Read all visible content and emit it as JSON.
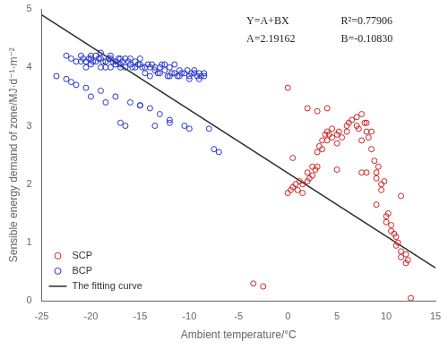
{
  "chart_data": {
    "type": "scatter",
    "xlabel": "Ambient temperature/°C",
    "ylabel": "Sensible energy demand of zone/MJ·d⁻¹·m⁻²",
    "xlim": [
      -25,
      15
    ],
    "ylim": [
      0,
      5
    ],
    "xticks": [
      -25,
      -20,
      -15,
      -10,
      -5,
      0,
      5,
      10,
      15
    ],
    "yticks": [
      0,
      1,
      2,
      3,
      4,
      5
    ],
    "grid": false,
    "legend": "lower left",
    "annotations": [
      "Y=A+BX",
      "A=2.19162",
      "R²=0.77906",
      "B=-0.10830"
    ],
    "series": [
      {
        "name": "SCP",
        "color": "#cc2222",
        "marker": "circle",
        "x": [
          -3.5,
          -2.5,
          0.0,
          0.3,
          0.5,
          0.8,
          1.0,
          1.2,
          1.5,
          1.5,
          2.0,
          2.0,
          2.2,
          2.5,
          2.5,
          2.8,
          3.0,
          3.0,
          3.2,
          3.5,
          3.5,
          3.8,
          4.0,
          4.0,
          4.2,
          4.5,
          4.5,
          5.0,
          5.0,
          5.2,
          5.5,
          6.0,
          6.0,
          6.2,
          6.5,
          7.0,
          7.0,
          7.2,
          7.5,
          7.5,
          7.8,
          8.0,
          8.0,
          8.2,
          8.5,
          8.5,
          8.8,
          9.0,
          9.0,
          9.2,
          9.5,
          9.5,
          9.8,
          10.0,
          10.0,
          10.2,
          10.5,
          10.5,
          10.8,
          11.0,
          11.0,
          11.2,
          11.5,
          11.5,
          12.0,
          12.0,
          12.2,
          0.0,
          0.5,
          2.0,
          3.0,
          4.0,
          5.0,
          7.5,
          8.0,
          9.0,
          11.5,
          12.5
        ],
        "values": [
          0.3,
          0.25,
          1.85,
          1.9,
          1.95,
          2.0,
          1.9,
          2.05,
          2.0,
          1.85,
          2.2,
          2.05,
          2.1,
          2.3,
          2.15,
          2.25,
          2.3,
          2.55,
          2.65,
          2.6,
          2.75,
          2.85,
          2.75,
          2.9,
          2.85,
          2.8,
          2.95,
          2.85,
          2.7,
          2.9,
          2.8,
          3.0,
          2.9,
          3.05,
          3.1,
          3.0,
          3.15,
          2.95,
          2.75,
          3.2,
          3.05,
          2.9,
          3.05,
          2.8,
          2.9,
          2.6,
          2.4,
          2.2,
          2.1,
          2.3,
          2.0,
          1.9,
          2.05,
          1.45,
          1.35,
          1.5,
          1.3,
          1.2,
          1.15,
          1.1,
          0.95,
          1.0,
          0.85,
          0.75,
          0.8,
          0.65,
          0.7,
          3.65,
          2.45,
          3.3,
          3.25,
          3.3,
          2.25,
          2.2,
          2.2,
          1.65,
          1.8,
          0.05
        ]
      },
      {
        "name": "BCP",
        "color": "#2233cc",
        "marker": "circle",
        "x": [
          -22.5,
          -22.0,
          -21.5,
          -21.0,
          -21.0,
          -20.8,
          -20.5,
          -20.5,
          -20.2,
          -20.0,
          -20.0,
          -20.0,
          -19.8,
          -19.5,
          -19.5,
          -19.2,
          -19.0,
          -19.0,
          -19.0,
          -18.8,
          -18.5,
          -18.5,
          -18.2,
          -18.0,
          -18.0,
          -18.0,
          -17.8,
          -17.5,
          -17.5,
          -17.2,
          -17.0,
          -17.0,
          -17.0,
          -16.8,
          -16.5,
          -16.5,
          -16.2,
          -16.0,
          -16.0,
          -15.8,
          -15.5,
          -15.5,
          -15.2,
          -15.0,
          -15.0,
          -14.8,
          -14.5,
          -14.5,
          -14.2,
          -14.0,
          -14.0,
          -13.8,
          -13.5,
          -13.5,
          -13.2,
          -13.0,
          -13.0,
          -12.8,
          -12.5,
          -12.5,
          -12.2,
          -12.0,
          -12.0,
          -11.8,
          -11.5,
          -11.5,
          -11.2,
          -11.0,
          -11.0,
          -10.8,
          -10.5,
          -10.2,
          -10.0,
          -10.0,
          -9.8,
          -9.5,
          -9.5,
          -9.2,
          -9.0,
          -9.0,
          -8.8,
          -8.5,
          -8.5,
          -22.0,
          -20.5,
          -19.0,
          -17.5,
          -16.0,
          -15.0,
          -14.0,
          -13.0,
          -12.0,
          -10.5,
          -22.5,
          -21.5,
          -20.0,
          -18.5,
          -17.0,
          -16.5,
          -15.0,
          -13.5,
          -12.0,
          -10.0,
          -23.5,
          -8.0,
          -7.5,
          -7.0
        ],
        "values": [
          4.2,
          4.15,
          4.1,
          4.2,
          4.1,
          4.15,
          4.1,
          4.0,
          4.15,
          4.15,
          4.05,
          4.2,
          4.1,
          4.1,
          4.2,
          4.15,
          4.0,
          4.15,
          4.25,
          4.1,
          4.0,
          4.1,
          4.15,
          4.0,
          4.15,
          4.2,
          4.1,
          4.05,
          4.1,
          4.15,
          4.0,
          4.15,
          4.05,
          4.1,
          4.0,
          4.15,
          4.1,
          4.05,
          4.15,
          4.0,
          4.0,
          4.1,
          4.05,
          4.05,
          4.15,
          4.0,
          3.9,
          4.0,
          4.05,
          3.85,
          4.0,
          4.05,
          4.0,
          3.95,
          3.9,
          3.9,
          4.0,
          4.05,
          4.05,
          3.95,
          3.85,
          4.0,
          3.85,
          3.9,
          3.9,
          4.05,
          3.85,
          3.85,
          3.95,
          3.9,
          3.9,
          3.95,
          3.85,
          3.8,
          3.9,
          3.9,
          3.95,
          3.85,
          3.8,
          3.9,
          3.85,
          3.9,
          3.85,
          3.75,
          3.65,
          3.6,
          3.5,
          3.4,
          3.35,
          3.3,
          3.2,
          3.1,
          3.0,
          3.8,
          3.7,
          3.5,
          3.4,
          3.05,
          3.0,
          3.35,
          3.0,
          3.05,
          2.95,
          3.85,
          2.95,
          2.6,
          2.55
        ]
      },
      {
        "name": "The fitting curve",
        "type": "line",
        "color": "#2a2a2a",
        "x": [
          -25,
          15
        ],
        "values": [
          4.89912,
          0.56712
        ]
      }
    ]
  }
}
